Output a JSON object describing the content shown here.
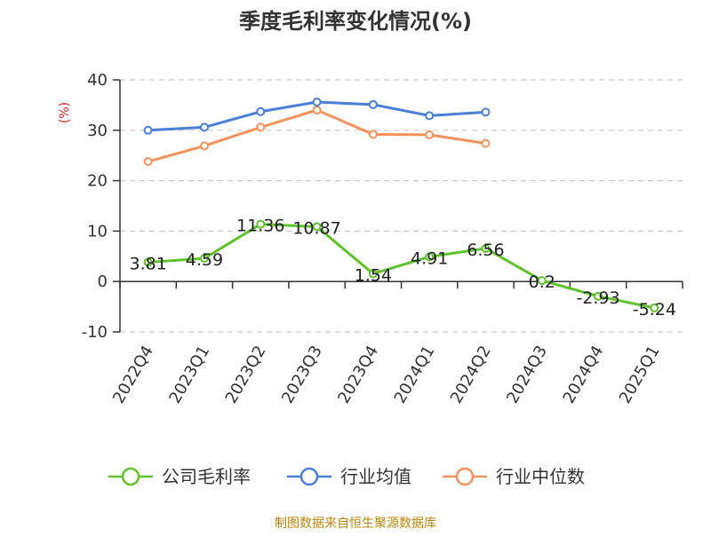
{
  "chart_data": {
    "type": "line",
    "title": "季度毛利率变化情况(%)",
    "ylabel": "(%)",
    "xlabel": "",
    "categories": [
      "2022Q4",
      "2023Q1",
      "2023Q2",
      "2023Q3",
      "2023Q4",
      "2024Q1",
      "2024Q2",
      "2024Q3",
      "2024Q4",
      "2025Q1"
    ],
    "yticks": [
      -10,
      0,
      10,
      20,
      30,
      40
    ],
    "ylim": [
      -10,
      40
    ],
    "grid": true,
    "legend_position": "bottom",
    "series": [
      {
        "name": "公司毛利率",
        "color": "#5ec22a",
        "values": [
          3.81,
          4.59,
          11.36,
          10.87,
          1.54,
          4.91,
          6.56,
          0.2,
          -2.93,
          -5.24
        ],
        "labels": [
          "3.81",
          "4.59",
          "11.36",
          "10.87",
          "1.54",
          "4.91",
          "6.56",
          "0.2",
          "-2.93",
          "-5.24"
        ]
      },
      {
        "name": "行业均值",
        "color": "#4a7fd8",
        "values": [
          30.0,
          30.6,
          33.7,
          35.6,
          35.1,
          32.9,
          33.6,
          null,
          null,
          null
        ]
      },
      {
        "name": "行业中位数",
        "color": "#f5915a",
        "values": [
          23.8,
          26.9,
          30.6,
          34.0,
          29.2,
          29.1,
          27.4,
          null,
          null,
          null
        ]
      }
    ]
  },
  "source": "制图数据来自恒生聚源数据库"
}
